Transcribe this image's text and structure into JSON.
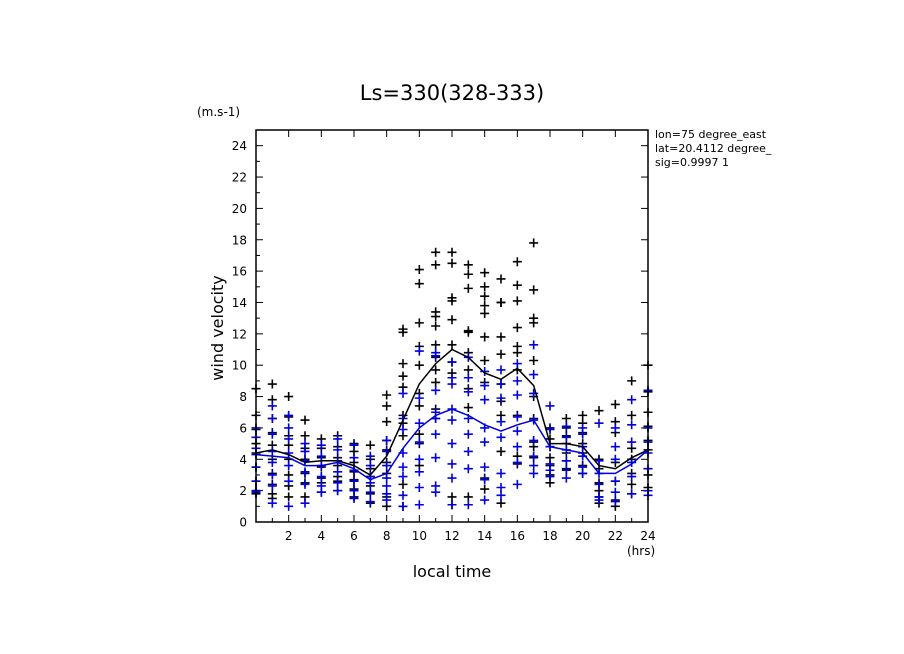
{
  "chart_data": {
    "type": "scatter",
    "title": "Ls=330(328-333)",
    "xlabel": "local time",
    "ylabel": "wind velocity",
    "x_unit": "(hrs)",
    "y_unit": "(m.s-1)",
    "xlim": [
      0,
      24
    ],
    "ylim": [
      0,
      25
    ],
    "x_ticks": [
      2,
      4,
      6,
      8,
      10,
      12,
      14,
      16,
      18,
      20,
      22,
      24
    ],
    "y_ticks": [
      0,
      2,
      4,
      6,
      8,
      10,
      12,
      14,
      16,
      18,
      20,
      22,
      24
    ],
    "grid": false,
    "annotation_lines": [
      "lon=75 degree_east",
      "lat=20.4112 degree_",
      "sig=0.9997 1"
    ],
    "series": [
      {
        "color": "#000000",
        "mean_line": {
          "x": [
            0,
            1,
            2,
            3,
            4,
            5,
            6,
            7,
            8,
            9,
            10,
            11,
            12,
            13,
            14,
            15,
            16,
            17,
            18,
            19,
            20,
            21,
            22,
            23,
            24
          ],
          "y": [
            4.4,
            4.6,
            4.3,
            3.8,
            3.9,
            3.9,
            3.6,
            3.0,
            4.2,
            6.5,
            8.8,
            10.1,
            11.0,
            10.5,
            9.5,
            9.1,
            9.8,
            8.7,
            5.0,
            5.0,
            4.8,
            3.6,
            3.4,
            4.1,
            4.6
          ]
        },
        "points": {
          "x": [
            0,
            0,
            0,
            0,
            0,
            0,
            0,
            0,
            0,
            1,
            1,
            1,
            1,
            1,
            1,
            1,
            1,
            1,
            1,
            2,
            2,
            2,
            2,
            2,
            2,
            2,
            2,
            3,
            3,
            3,
            3,
            3,
            3,
            3,
            4,
            4,
            4,
            4,
            4,
            4,
            4,
            5,
            5,
            5,
            5,
            5,
            5,
            5,
            6,
            6,
            6,
            6,
            6,
            6,
            6,
            7,
            7,
            7,
            7,
            7,
            7,
            7,
            8,
            8,
            8,
            8,
            8,
            8,
            8,
            8,
            8,
            9,
            9,
            9,
            9,
            9,
            9,
            9,
            9,
            9,
            9,
            10,
            10,
            10,
            10,
            10,
            10,
            10,
            10,
            10,
            10,
            11,
            11,
            11,
            11,
            11,
            11,
            11,
            11,
            11,
            11,
            11,
            12,
            12,
            12,
            12,
            12,
            12,
            12,
            12,
            12,
            12,
            13,
            13,
            13,
            13,
            13,
            13,
            13,
            13,
            13,
            13,
            14,
            14,
            14,
            14,
            14,
            14,
            14,
            14,
            14,
            14,
            15,
            15,
            15,
            15,
            15,
            15,
            15,
            15,
            15,
            15,
            16,
            16,
            16,
            16,
            16,
            16,
            16,
            16,
            16,
            16,
            17,
            17,
            17,
            17,
            17,
            17,
            17,
            17,
            17,
            17,
            18,
            18,
            18,
            18,
            18,
            18,
            18,
            19,
            19,
            19,
            19,
            19,
            19,
            19,
            20,
            20,
            20,
            20,
            20,
            20,
            20,
            21,
            21,
            21,
            21,
            21,
            21,
            21,
            22,
            22,
            22,
            22,
            22,
            22,
            22,
            23,
            23,
            23,
            23,
            23,
            23,
            23,
            24,
            24,
            24,
            24,
            24,
            24,
            24,
            24
          ],
          "y": [
            8.5,
            6.8,
            5.9,
            5.0,
            4.4,
            3.5,
            2.6,
            2.0,
            1.8,
            8.8,
            7.8,
            6.6,
            5.7,
            4.9,
            4.0,
            3.1,
            2.4,
            1.8,
            1.5,
            8.0,
            6.7,
            5.5,
            4.9,
            4.0,
            3.0,
            2.3,
            1.6,
            6.5,
            5.5,
            4.7,
            4.0,
            3.1,
            2.5,
            1.6,
            5.3,
            4.7,
            4.1,
            3.5,
            2.8,
            2.5,
            1.9,
            5.5,
            4.8,
            4.1,
            3.6,
            2.9,
            2.6,
            2.0,
            5.0,
            4.5,
            3.8,
            3.2,
            2.7,
            2.1,
            1.6,
            4.9,
            4.0,
            3.4,
            2.9,
            2.3,
            1.8,
            1.2,
            8.1,
            7.4,
            6.4,
            5.2,
            4.6,
            3.8,
            3.1,
            1.6,
            1.0,
            12.3,
            12.1,
            10.1,
            9.3,
            8.6,
            6.8,
            6.3,
            5.5,
            2.4,
            1.0,
            16.1,
            15.2,
            12.7,
            11.2,
            10.0,
            8.2,
            7.4,
            5.6,
            5.0,
            3.6,
            17.2,
            16.4,
            13.4,
            13.1,
            12.5,
            11.3,
            10.5,
            9.7,
            8.9,
            7.2,
            6.6,
            17.2,
            16.5,
            14.3,
            14.1,
            12.9,
            11.3,
            10.2,
            9.5,
            1.6,
            1.1,
            16.4,
            15.8,
            14.9,
            12.2,
            12.1,
            10.8,
            9.7,
            8.5,
            7.3,
            1.6,
            15.9,
            15.0,
            14.4,
            13.8,
            13.3,
            11.8,
            10.3,
            8.9,
            2.8,
            2.1,
            15.5,
            14.0,
            14.0,
            11.8,
            10.7,
            8.8,
            7.7,
            6.8,
            4.5,
            1.2,
            16.6,
            15.1,
            14.1,
            12.4,
            11.2,
            10.8,
            9.7,
            6.8,
            4.2,
            3.7,
            17.8,
            14.8,
            13.0,
            12.7,
            10.3,
            8.0,
            6.6,
            5.1,
            4.8,
            4.1,
            6.0,
            5.3,
            4.8,
            4.1,
            3.6,
            3.0,
            2.5,
            6.6,
            6.0,
            5.5,
            5.0,
            4.4,
            3.9,
            3.4,
            6.8,
            6.3,
            5.7,
            5.0,
            4.4,
            3.6,
            3.1,
            7.1,
            4.0,
            3.4,
            2.5,
            2.0,
            1.6,
            1.2,
            7.5,
            6.4,
            5.7,
            3.8,
            2.6,
            1.4,
            1.0,
            9.0,
            6.8,
            4.7,
            4.0,
            3.1,
            2.4,
            1.8,
            10.0,
            8.3,
            7.0,
            6.1,
            5.2,
            4.6,
            3.0,
            2.2
          ]
        }
      },
      {
        "color": "#0000dd",
        "mean_line": {
          "x": [
            0,
            1,
            2,
            3,
            4,
            5,
            6,
            7,
            8,
            9,
            10,
            11,
            12,
            13,
            14,
            15,
            16,
            17,
            18,
            19,
            20,
            21,
            22,
            23,
            24
          ],
          "y": [
            4.3,
            4.2,
            4.1,
            3.6,
            3.6,
            3.8,
            3.4,
            2.7,
            3.1,
            4.7,
            6.0,
            6.8,
            7.2,
            6.8,
            6.2,
            5.8,
            6.2,
            6.5,
            4.8,
            4.6,
            4.4,
            3.1,
            3.1,
            3.7,
            4.6
          ]
        },
        "points": {
          "x": [
            0,
            0,
            0,
            0,
            0,
            0,
            0,
            0,
            1,
            1,
            1,
            1,
            1,
            1,
            1,
            1,
            2,
            2,
            2,
            2,
            2,
            2,
            2,
            3,
            3,
            3,
            3,
            3,
            3,
            4,
            4,
            4,
            4,
            4,
            4,
            5,
            5,
            5,
            5,
            5,
            5,
            6,
            6,
            6,
            6,
            6,
            6,
            7,
            7,
            7,
            7,
            7,
            7,
            8,
            8,
            8,
            8,
            8,
            8,
            8,
            9,
            9,
            9,
            9,
            9,
            9,
            9,
            9,
            10,
            10,
            10,
            10,
            10,
            10,
            10,
            10,
            11,
            11,
            11,
            11,
            11,
            11,
            11,
            11,
            11,
            12,
            12,
            12,
            12,
            12,
            12,
            12,
            12,
            12,
            13,
            13,
            13,
            13,
            13,
            13,
            13,
            13,
            14,
            14,
            14,
            14,
            14,
            14,
            14,
            14,
            15,
            15,
            15,
            15,
            15,
            15,
            15,
            15,
            16,
            16,
            16,
            16,
            16,
            16,
            16,
            16,
            17,
            17,
            17,
            17,
            17,
            17,
            17,
            17,
            18,
            18,
            18,
            18,
            18,
            18,
            19,
            19,
            19,
            19,
            19,
            19,
            20,
            20,
            20,
            20,
            20,
            20,
            21,
            21,
            21,
            21,
            21,
            21,
            22,
            22,
            22,
            22,
            22,
            22,
            23,
            23,
            23,
            23,
            23,
            23,
            24,
            24,
            24,
            24,
            24,
            24,
            24
          ],
          "y": [
            6.0,
            5.4,
            4.7,
            4.3,
            3.5,
            2.6,
            2.0,
            1.9,
            7.4,
            6.6,
            5.6,
            4.5,
            3.8,
            3.0,
            2.3,
            1.2,
            6.8,
            6.0,
            5.3,
            4.4,
            3.6,
            2.6,
            1.0,
            5.0,
            4.5,
            3.9,
            3.2,
            2.4,
            1.2,
            4.9,
            4.2,
            3.6,
            2.9,
            2.3,
            1.9,
            5.3,
            4.6,
            3.9,
            3.2,
            2.5,
            2.0,
            4.9,
            4.1,
            3.3,
            2.6,
            2.0,
            1.5,
            4.2,
            3.6,
            2.9,
            2.5,
            1.9,
            1.3,
            5.2,
            4.5,
            3.6,
            2.8,
            2.3,
            1.8,
            1.4,
            8.2,
            6.6,
            5.9,
            4.4,
            3.5,
            2.9,
            1.7,
            1.0,
            10.9,
            7.9,
            6.3,
            5.1,
            4.0,
            3.2,
            2.2,
            1.1,
            10.8,
            10.6,
            8.4,
            7.0,
            6.6,
            5.6,
            4.1,
            2.3,
            1.9,
            10.2,
            9.2,
            8.8,
            7.2,
            6.5,
            5.0,
            3.7,
            2.8,
            1.1,
            10.5,
            9.2,
            8.3,
            6.6,
            5.6,
            4.5,
            3.4,
            1.1,
            9.6,
            8.7,
            7.8,
            6.0,
            5.1,
            3.5,
            2.7,
            1.4,
            9.7,
            8.8,
            7.9,
            6.4,
            5.4,
            3.1,
            2.2,
            1.7,
            10.1,
            9.0,
            8.1,
            6.7,
            5.8,
            4.8,
            3.8,
            2.4,
            11.3,
            9.4,
            8.2,
            6.5,
            5.2,
            4.2,
            3.6,
            3.1,
            7.4,
            5.9,
            4.8,
            3.7,
            3.3,
            2.9,
            6.1,
            5.4,
            4.6,
            3.9,
            3.3,
            2.8,
            6.0,
            5.6,
            4.8,
            4.2,
            3.5,
            3.1,
            6.3,
            3.9,
            3.1,
            2.4,
            1.6,
            1.4,
            6.0,
            4.8,
            4.0,
            2.6,
            1.9,
            1.3,
            7.8,
            6.2,
            5.1,
            3.8,
            2.9,
            1.8,
            8.4,
            6.0,
            5.1,
            4.4,
            3.4,
            2.0,
            1.7
          ]
        }
      }
    ]
  }
}
